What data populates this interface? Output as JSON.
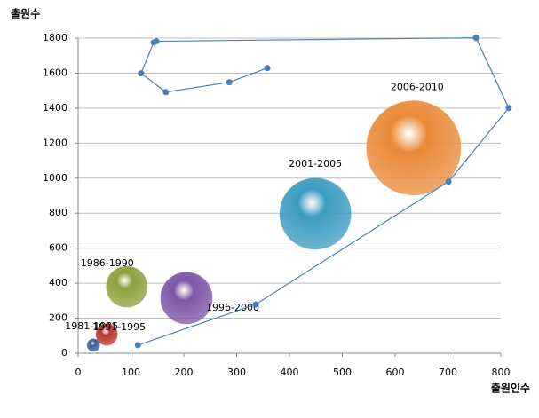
{
  "chart_data": {
    "type": "bubble",
    "x_label": "출원인수",
    "y_label": "출원수",
    "xlim": [
      0,
      800
    ],
    "ylim": [
      0,
      1800
    ],
    "xticks": [
      0,
      100,
      200,
      300,
      400,
      500,
      600,
      700,
      800
    ],
    "yticks": [
      0,
      200,
      400,
      600,
      800,
      1000,
      1200,
      1400,
      1600,
      1800
    ],
    "grid": true,
    "bubbles": {
      "labels": [
        "1981-1985",
        "1986-1990",
        "1991-1995",
        "1996-2000",
        "2001-2005",
        "2006-2010"
      ],
      "x": [
        29,
        92,
        54,
        205,
        449,
        635
      ],
      "values": [
        46,
        380,
        107,
        315,
        797,
        1173
      ],
      "sizes": [
        49,
        529,
        144,
        841,
        1600,
        2809
      ],
      "colors": [
        "#3b5f9c",
        "#8da03c",
        "#b5392e",
        "#7c56a6",
        "#3b9cc0",
        "#ea8a38"
      ]
    },
    "line": {
      "color": "#4a7ebb",
      "x": [
        113,
        336,
        701,
        815,
        753,
        148,
        143,
        119,
        166,
        286,
        358
      ],
      "values": [
        46,
        279,
        980,
        1401,
        1802,
        1782,
        1775,
        1599,
        1492,
        1548,
        1629
      ]
    }
  }
}
